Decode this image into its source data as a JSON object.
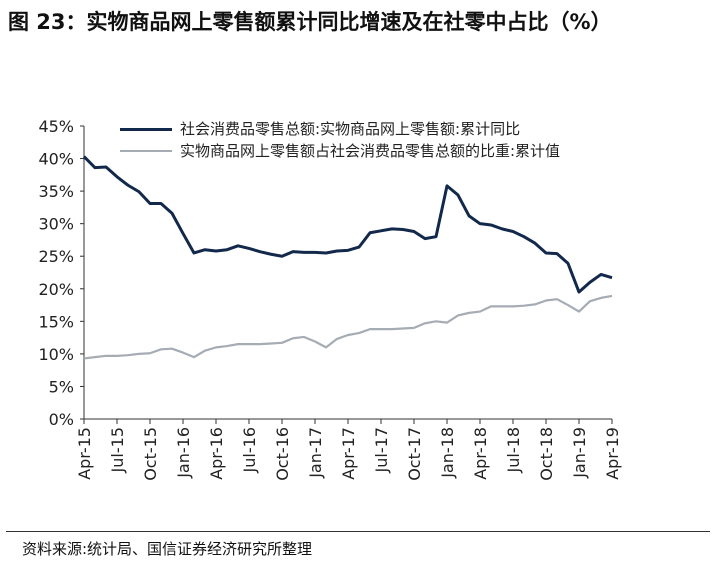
{
  "chart_data": {
    "type": "line",
    "title": "图 23：实物商品网上零售额累计同比增速及在社零中占比（%）",
    "source": "资料来源:统计局、国信证券经济研究所整理",
    "categories": [
      "Apr-15",
      null,
      null,
      "Jul-15",
      null,
      null,
      "Oct-15",
      null,
      null,
      "Jan-16",
      null,
      null,
      "Apr-16",
      null,
      null,
      "Jul-16",
      null,
      null,
      "Oct-16",
      null,
      null,
      "Jan-17",
      null,
      null,
      "Apr-17",
      null,
      null,
      "Jul-17",
      null,
      null,
      "Oct-17",
      null,
      null,
      "Jan-18",
      null,
      null,
      "Apr-18",
      null,
      null,
      "Jul-18",
      null,
      null,
      "Oct-18",
      null,
      null,
      "Jan-19",
      null,
      null,
      "Apr-19"
    ],
    "series": [
      {
        "name": "社会消费品零售总额:实物商品网上零售额:累计同比",
        "color": "#13294b",
        "values": [
          40.3,
          38.6,
          38.7,
          37.2,
          35.9,
          34.9,
          33.1,
          33.1,
          31.6,
          28.5,
          25.5,
          26.0,
          25.8,
          26.0,
          26.6,
          26.2,
          25.7,
          25.3,
          25.0,
          25.7,
          25.6,
          25.6,
          25.5,
          25.8,
          25.9,
          26.4,
          28.6,
          28.9,
          29.2,
          29.1,
          28.8,
          27.7,
          28.0,
          35.8,
          34.4,
          31.2,
          30.0,
          29.8,
          29.2,
          28.8,
          28.0,
          27.0,
          25.5,
          25.4,
          23.9,
          19.5,
          21.0,
          22.2,
          21.7
        ]
      },
      {
        "name": "实物商品网上零售额占社会消费品零售总额的比重:累计值",
        "color": "#a6acb3",
        "values": [
          9.3,
          9.5,
          9.7,
          9.7,
          9.8,
          10.0,
          10.1,
          10.7,
          10.8,
          10.2,
          9.5,
          10.5,
          11.0,
          11.2,
          11.5,
          11.5,
          11.5,
          11.6,
          11.7,
          12.4,
          12.6,
          11.9,
          11.0,
          12.3,
          12.9,
          13.2,
          13.8,
          13.8,
          13.8,
          13.9,
          14.0,
          14.7,
          15.0,
          14.8,
          15.9,
          16.3,
          16.5,
          17.3,
          17.3,
          17.3,
          17.4,
          17.6,
          18.2,
          18.4,
          17.5,
          16.5,
          18.1,
          18.6,
          18.9
        ]
      }
    ],
    "ylim": [
      0,
      45
    ],
    "yticks": [
      {
        "value": 0,
        "label": "0%"
      },
      {
        "value": 5,
        "label": "5%"
      },
      {
        "value": 10,
        "label": "10%"
      },
      {
        "value": 15,
        "label": "15%"
      },
      {
        "value": 20,
        "label": "20%"
      },
      {
        "value": 25,
        "label": "25%"
      },
      {
        "value": 30,
        "label": "30%"
      },
      {
        "value": 35,
        "label": "35%"
      },
      {
        "value": 40,
        "label": "40%"
      },
      {
        "value": 45,
        "label": "45%"
      }
    ],
    "legend": "upper left"
  }
}
